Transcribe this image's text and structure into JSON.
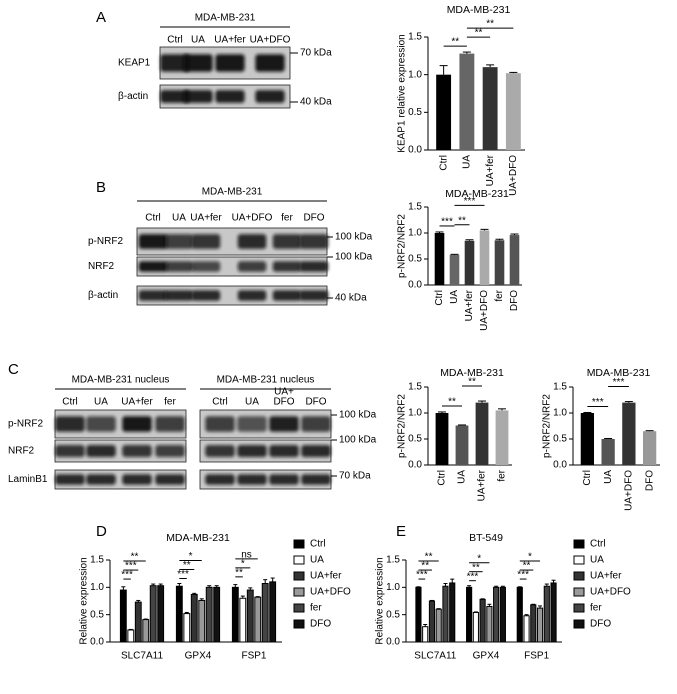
{
  "panel_labels": [
    "A",
    "B",
    "C",
    "D",
    "E"
  ],
  "blots": [
    {
      "title": "MDA-MB-231",
      "lanes": [
        "Ctrl",
        "UA",
        "UA+fer",
        "UA+DFO"
      ],
      "rows": [
        "KEAP1",
        "β-actin"
      ],
      "markers": [
        "70 kDa",
        "40 kDa"
      ]
    },
    {
      "title": "MDA-MB-231",
      "lanes": [
        "Ctrl",
        "UA",
        "UA+fer",
        "UA+DFO",
        "fer",
        "DFO"
      ],
      "rows": [
        "p-NRF2",
        "NRF2",
        "β-actin"
      ],
      "markers": [
        "100 kDa",
        "100 kDa",
        "40 kDa"
      ]
    },
    {
      "title": "MDA-MB-231 nucleus",
      "lanes": [
        "Ctrl",
        "UA",
        "UA+fer",
        "fer"
      ],
      "rows": [
        "p-NRF2",
        "NRF2",
        "LaminB1"
      ]
    },
    {
      "title": "MDA-MB-231 nucleus",
      "lanes": [
        "Ctrl",
        "UA",
        [
          "UA+",
          "DFO"
        ],
        "DFO"
      ],
      "markers": [
        "100 kDa",
        "100 kDa",
        "70 kDa"
      ]
    }
  ],
  "chart_data": [
    {
      "type": "bar",
      "title": "MDA-MB-231",
      "ylabel": "KEAP1 relative expression",
      "categories": [
        "Ctrl",
        "UA",
        "UA+fer",
        "UA+DFO"
      ],
      "values": [
        1.0,
        1.28,
        1.1,
        1.02
      ],
      "errors": [
        0.12,
        0.02,
        0.03,
        0.01
      ],
      "colors": [
        "#000000",
        "#666666",
        "#333333",
        "#aaaaaa"
      ],
      "ylim": [
        0,
        1.5
      ],
      "yticks": [
        {
          "value": 0,
          "label": "0.0"
        },
        0.5,
        {
          "value": 1,
          "label": "1.0"
        },
        1.5
      ],
      "annotations": [
        "**",
        "**",
        "**"
      ]
    },
    {
      "type": "bar",
      "title": "MDA-MB-231",
      "ylabel": "p-NRF2/NRF2",
      "categories": [
        "Ctrl",
        "UA",
        "UA+fer",
        "UA+DFO",
        "fer",
        "DFO"
      ],
      "values": [
        1.0,
        0.58,
        0.85,
        1.05,
        0.86,
        0.96
      ],
      "errors": [
        0.02,
        0.01,
        0.02,
        0.02,
        0.02,
        0.02
      ],
      "colors": [
        "#000000",
        "#666666",
        "#333333",
        "#aaaaaa",
        "#444444",
        "#555555"
      ],
      "ylim": [
        0,
        1.5
      ],
      "yticks": [
        {
          "value": 0,
          "label": "0.0"
        },
        0.5,
        {
          "value": 1,
          "label": "1.0"
        },
        1.5
      ],
      "annotations": [
        "***",
        "**",
        "***"
      ]
    },
    {
      "type": "bar",
      "title": "MDA-MB-231",
      "ylabel": "p-NRF2/NRF2",
      "categories": [
        "Ctrl",
        "UA",
        "UA+fer",
        "fer"
      ],
      "values": [
        1.0,
        0.76,
        1.2,
        1.05
      ],
      "errors": [
        0.02,
        0.01,
        0.03,
        0.03
      ],
      "colors": [
        "#000000",
        "#555555",
        "#333333",
        "#aaaaaa"
      ],
      "ylim": [
        0,
        1.5
      ],
      "yticks": [
        {
          "value": 0,
          "label": "0.0"
        },
        0.5,
        {
          "value": 1,
          "label": "1.0"
        },
        1.5
      ],
      "annotations": [
        "**",
        "**"
      ]
    },
    {
      "type": "bar",
      "title": "MDA-MB-231",
      "ylabel": "p-NRF2/NRF2",
      "categories": [
        "Ctrl",
        "UA",
        "UA+DFO",
        "DFO"
      ],
      "values": [
        1.0,
        0.5,
        1.2,
        0.65
      ],
      "errors": [
        0.01,
        0.01,
        0.02,
        0.01
      ],
      "colors": [
        "#000000",
        "#555555",
        "#333333",
        "#999999"
      ],
      "ylim": [
        0,
        1.5
      ],
      "yticks": [
        {
          "value": 0,
          "label": "0.0"
        },
        0.5,
        {
          "value": 1,
          "label": "1.0"
        },
        1.5
      ],
      "annotations": [
        "***",
        "***"
      ]
    },
    {
      "type": "bar",
      "title": "MDA-MB-231",
      "ylabel": "Relative expression",
      "categories": [
        "SLC7A11",
        "GPX4",
        "FSP1"
      ],
      "series": [
        {
          "name": "Ctrl",
          "color": "#000000",
          "values": [
            0.95,
            1.02,
            1.0
          ],
          "errors": [
            0.06,
            0.05,
            0.05
          ]
        },
        {
          "name": "UA",
          "color": "#ffffff",
          "values": [
            0.22,
            0.52,
            0.8
          ],
          "errors": [
            0.01,
            0.02,
            0.04
          ]
        },
        {
          "name": "UA+fer",
          "color": "#333333",
          "values": [
            0.73,
            0.87,
            0.95
          ],
          "errors": [
            0.03,
            0.02,
            0.04
          ]
        },
        {
          "name": "UA+DFO",
          "color": "#999999",
          "values": [
            0.41,
            0.76,
            0.82
          ],
          "errors": [
            0.01,
            0.03,
            0.01
          ]
        },
        {
          "name": "fer",
          "color": "#444444",
          "values": [
            1.03,
            1.0,
            1.07
          ],
          "errors": [
            0.03,
            0.03,
            0.07
          ]
        },
        {
          "name": "DFO",
          "color": "#111111",
          "values": [
            1.03,
            1.0,
            1.1
          ],
          "errors": [
            0.03,
            0.03,
            0.07
          ]
        }
      ],
      "legend": "right",
      "ylim": [
        0,
        1.5
      ],
      "yticks": [
        {
          "value": 0,
          "label": "0.0"
        },
        0.5,
        {
          "value": 1,
          "label": "1.0"
        },
        1.5
      ],
      "annotations": [
        "***",
        "***",
        "**",
        "***",
        "**",
        "*",
        "**",
        "*",
        "ns"
      ]
    },
    {
      "type": "bar",
      "title": "BT-549",
      "ylabel": "Relative expression",
      "categories": [
        "SLC7A11",
        "GPX4",
        "FSP1"
      ],
      "series": [
        {
          "name": "Ctrl",
          "color": "#000000",
          "values": [
            1.0,
            1.0,
            1.0
          ],
          "errors": [
            0.01,
            0.03,
            0.01
          ]
        },
        {
          "name": "UA",
          "color": "#ffffff",
          "values": [
            0.28,
            0.54,
            0.48
          ],
          "errors": [
            0.04,
            0.01,
            0.02
          ]
        },
        {
          "name": "UA+fer",
          "color": "#333333",
          "values": [
            0.75,
            0.78,
            0.68
          ],
          "errors": [
            0.01,
            0.01,
            0.01
          ]
        },
        {
          "name": "UA+DFO",
          "color": "#999999",
          "values": [
            0.6,
            0.65,
            0.62
          ],
          "errors": [
            0.01,
            0.04,
            0.04
          ]
        },
        {
          "name": "fer",
          "color": "#444444",
          "values": [
            1.02,
            1.0,
            1.02
          ],
          "errors": [
            0.05,
            0.02,
            0.04
          ]
        },
        {
          "name": "DFO",
          "color": "#111111",
          "values": [
            1.08,
            1.0,
            1.08
          ],
          "errors": [
            0.07,
            0.02,
            0.05
          ]
        }
      ],
      "legend": "right",
      "ylim": [
        0,
        1.5
      ],
      "yticks": [
        {
          "value": 0,
          "label": "0.0"
        },
        0.5,
        {
          "value": 1,
          "label": "1.0"
        },
        1.5
      ],
      "annotations": [
        "***",
        "**",
        "**",
        "***",
        "**",
        "*",
        "***",
        "**",
        "*"
      ]
    }
  ]
}
